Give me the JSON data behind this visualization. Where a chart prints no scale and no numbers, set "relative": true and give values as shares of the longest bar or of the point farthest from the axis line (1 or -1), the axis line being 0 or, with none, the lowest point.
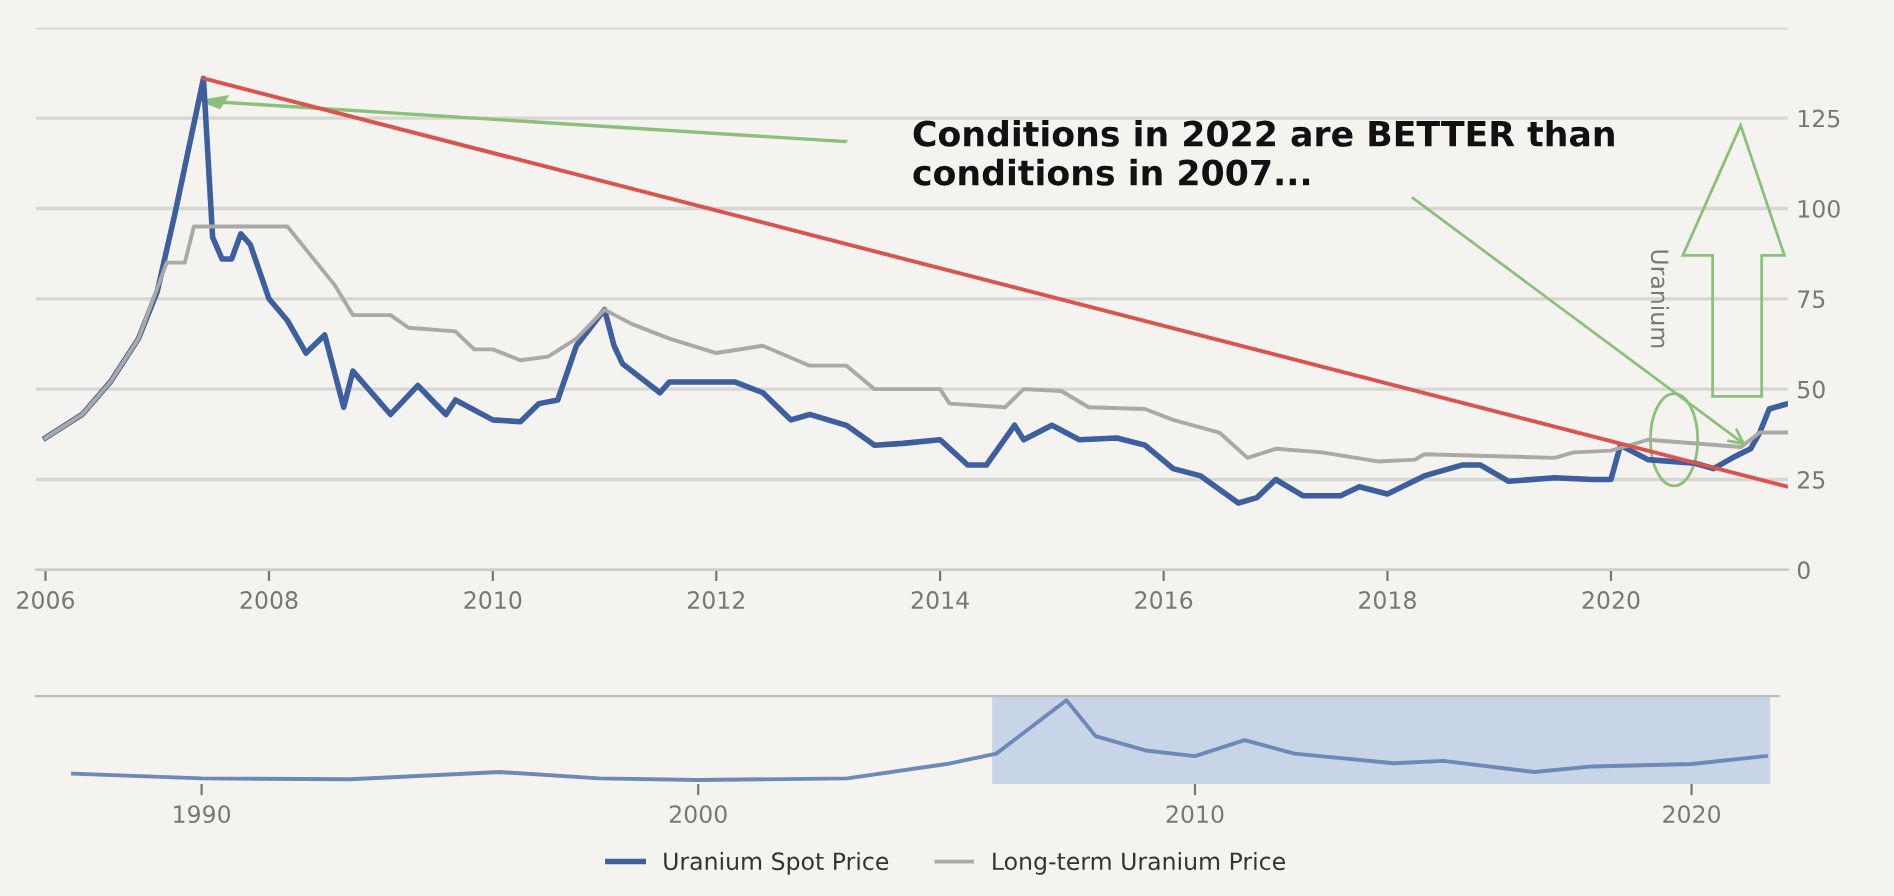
{
  "chart_data": [
    {
      "type": "line",
      "ylabel": "Uranium",
      "x": [
        "2006-01",
        "2006-05",
        "2006-08",
        "2006-11",
        "2007-01",
        "2007-03",
        "2007-06",
        "2007-07",
        "2007-08",
        "2007-09",
        "2007-10",
        "2007-11",
        "2008-01",
        "2008-03",
        "2008-05",
        "2008-07",
        "2008-08",
        "2008-09",
        "2008-10",
        "2009-02",
        "2009-05",
        "2009-08",
        "2009-09",
        "2010-01",
        "2010-04",
        "2010-06",
        "2010-08",
        "2010-10",
        "2011-01",
        "2011-02",
        "2011-03",
        "2011-07",
        "2011-08",
        "2012-03",
        "2012-06",
        "2012-09",
        "2012-11",
        "2013-03",
        "2013-06",
        "2013-09",
        "2014-01",
        "2014-04",
        "2014-06",
        "2014-09",
        "2014-10",
        "2015-01",
        "2015-04",
        "2015-08",
        "2015-11",
        "2016-02",
        "2016-05",
        "2016-09",
        "2016-11",
        "2017-01",
        "2017-04",
        "2017-08",
        "2017-10",
        "2018-01",
        "2018-05",
        "2018-09",
        "2018-11",
        "2019-02",
        "2019-07",
        "2019-11",
        "2020-01",
        "2020-02",
        "2020-05",
        "2020-10",
        "2020-12",
        "2021-02",
        "2021-04",
        "2021-05",
        "2021-06",
        "2021-08"
      ],
      "series": [
        {
          "name": "Uranium Spot Price",
          "color": "#3d5f9e",
          "values": [
            36.5,
            43,
            52,
            64,
            77,
            99,
            136,
            92,
            86,
            86,
            93,
            90,
            75,
            69,
            60,
            65,
            55,
            45,
            55,
            43,
            51,
            43,
            47,
            41.5,
            41,
            46,
            47,
            62,
            72,
            62,
            57,
            49,
            52,
            52,
            49,
            41.5,
            43,
            40,
            34.5,
            35,
            36,
            29,
            29,
            40,
            36,
            40,
            36,
            36.5,
            34.5,
            28,
            26,
            18.5,
            20,
            25,
            20.5,
            20.5,
            23,
            21,
            26,
            29,
            29,
            24.5,
            25.5,
            25,
            25,
            34.5,
            30.5,
            29.5,
            28,
            31,
            33.5,
            38,
            44.5,
            46
          ]
        },
        {
          "name": "Long-term Uranium Price",
          "color": "#a9a9a7",
          "x": [
            "2006-01",
            "2006-05",
            "2006-08",
            "2006-11",
            "2007-02",
            "2007-04",
            "2007-05",
            "2008-03",
            "2008-08",
            "2008-10",
            "2009-02",
            "2009-04",
            "2009-09",
            "2009-11",
            "2010-01",
            "2010-04",
            "2010-07",
            "2010-10",
            "2011-01",
            "2011-04",
            "2011-08",
            "2012-01",
            "2012-06",
            "2012-11",
            "2013-03",
            "2013-06",
            "2014-01",
            "2014-02",
            "2014-08",
            "2014-10",
            "2015-02",
            "2015-05",
            "2015-11",
            "2016-02",
            "2016-07",
            "2016-10",
            "2017-01",
            "2017-06",
            "2017-12",
            "2018-04",
            "2018-05",
            "2019-07",
            "2019-09",
            "2020-01",
            "2020-05",
            "2021-03",
            "2021-05",
            "2021-08"
          ],
          "values": [
            36.5,
            43,
            52,
            64,
            85,
            85,
            95,
            95,
            79,
            70.5,
            70.5,
            67,
            66,
            61,
            61,
            58,
            59,
            64,
            72,
            68,
            64,
            60,
            62,
            56.5,
            56.5,
            50,
            50,
            46,
            45,
            50,
            49.5,
            45,
            44.5,
            41.5,
            38,
            31,
            33.5,
            32.5,
            30,
            30.5,
            32,
            31,
            32.5,
            33,
            36,
            34,
            38,
            38
          ]
        },
        {
          "type": "line",
          "color": "#d9534f",
          "x": [
            "2007-06",
            "2021-08"
          ],
          "values": [
            136,
            23
          ]
        }
      ],
      "xlim": [
        "2005-12",
        "2021-08"
      ],
      "xticks": [
        "2006",
        "2008",
        "2010",
        "2012",
        "2014",
        "2016",
        "2018",
        "2020"
      ],
      "ylim": [
        0,
        150
      ],
      "yticks": [
        0,
        25,
        50,
        75,
        100,
        125,
        {
          "value": 150,
          "label": null
        }
      ],
      "grid": "y",
      "legend": "bottom",
      "annotations": [
        {
          "text": "Conditions in 2022 are BETTER than\nconditions in 2007...",
          "x": "2021-04",
          "y": 33.5
        }
      ]
    },
    {
      "type": "line",
      "relative": true,
      "x": [
        "1987-06",
        "1990",
        "1993",
        "1996",
        "1998",
        "2000",
        "2003",
        "2005",
        "2006",
        "2007-06",
        "2008",
        "2009",
        "2010",
        "2011-01",
        "2012",
        "2014",
        "2015",
        "2016-11",
        "2018",
        "2020",
        "2021-07"
      ],
      "series": [
        {
          "color": "#6d89b8",
          "values": [
            0.08,
            0.02,
            0.01,
            0.1,
            0.02,
            0,
            0.02,
            0.2,
            0.33,
            1,
            0.55,
            0.37,
            0.3,
            0.5,
            0.33,
            0.21,
            0.24,
            0.1,
            0.17,
            0.2,
            0.3
          ]
        }
      ],
      "xlim": [
        "1986-09",
        "2021-10"
      ],
      "xticks": [
        "1990",
        "2000",
        "2010",
        "2020"
      ],
      "tick_labels": "x",
      "bands": [
        {
          "axis": "x",
          "from": "2005-12",
          "to": "2021-08",
          "color": "#c8d4e8"
        }
      ]
    }
  ]
}
